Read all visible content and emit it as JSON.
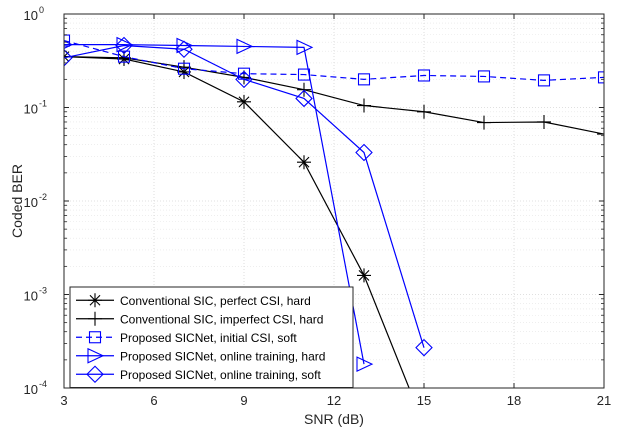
{
  "chart_data": {
    "type": "line",
    "xlabel": "SNR (dB)",
    "ylabel": "Coded BER",
    "xlim": [
      3,
      21
    ],
    "ylim": [
      0.0001,
      1
    ],
    "yscale": "log",
    "grid": true,
    "legend_position": "bottom-left",
    "x_ticks": [
      3,
      6,
      9,
      12,
      15,
      18,
      21
    ],
    "x_tick_labels": [
      "3",
      "6",
      "9",
      "12",
      "15",
      "18",
      "21"
    ],
    "y_ticks": [
      0.0001,
      0.001,
      0.01,
      0.1,
      1
    ],
    "y_tick_labels": [
      {
        "base": "10",
        "exp": "-4"
      },
      {
        "base": "10",
        "exp": "-3"
      },
      {
        "base": "10",
        "exp": "-2"
      },
      {
        "base": "10",
        "exp": "-1"
      },
      {
        "base": "10",
        "exp": "0"
      }
    ],
    "series": [
      {
        "name": "Conventional SIC,  perfect CSI, hard",
        "color": "#000000",
        "dash": "solid",
        "marker": "asterisk",
        "x": [
          3,
          5,
          7,
          9,
          11,
          13,
          15
        ],
        "y": [
          0.35,
          0.33,
          0.24,
          0.115,
          0.026,
          0.0016,
          4e-05
        ]
      },
      {
        "name": "Conventional SIC, imperfect CSI, hard",
        "color": "#000000",
        "dash": "solid",
        "marker": "plus",
        "x": [
          3,
          5,
          7,
          9,
          11,
          13,
          15,
          17,
          19,
          21
        ],
        "y": [
          0.35,
          0.34,
          0.27,
          0.21,
          0.155,
          0.105,
          0.09,
          0.069,
          0.07,
          0.052
        ]
      },
      {
        "name": "Proposed SICNet, initial CSI, soft",
        "color": "#0000ff",
        "dash": "dashed",
        "marker": "square",
        "x": [
          3,
          5,
          7,
          9,
          11,
          13,
          15,
          17,
          19,
          21
        ],
        "y": [
          0.52,
          0.35,
          0.26,
          0.23,
          0.225,
          0.2,
          0.22,
          0.215,
          0.195,
          0.21
        ]
      },
      {
        "name": "Proposed SICNet, online training, hard",
        "color": "#0000ff",
        "dash": "solid",
        "marker": "triangle-right",
        "x": [
          3,
          5,
          7,
          9,
          11,
          13
        ],
        "y": [
          0.47,
          0.47,
          0.46,
          0.45,
          0.44,
          0.00018
        ]
      },
      {
        "name": "Proposed SICNet, online training, soft",
        "color": "#0000ff",
        "dash": "solid",
        "marker": "diamond",
        "x": [
          3,
          5,
          7,
          9,
          11,
          13,
          15
        ],
        "y": [
          0.34,
          0.46,
          0.42,
          0.2,
          0.125,
          0.033,
          0.00027
        ]
      }
    ]
  }
}
